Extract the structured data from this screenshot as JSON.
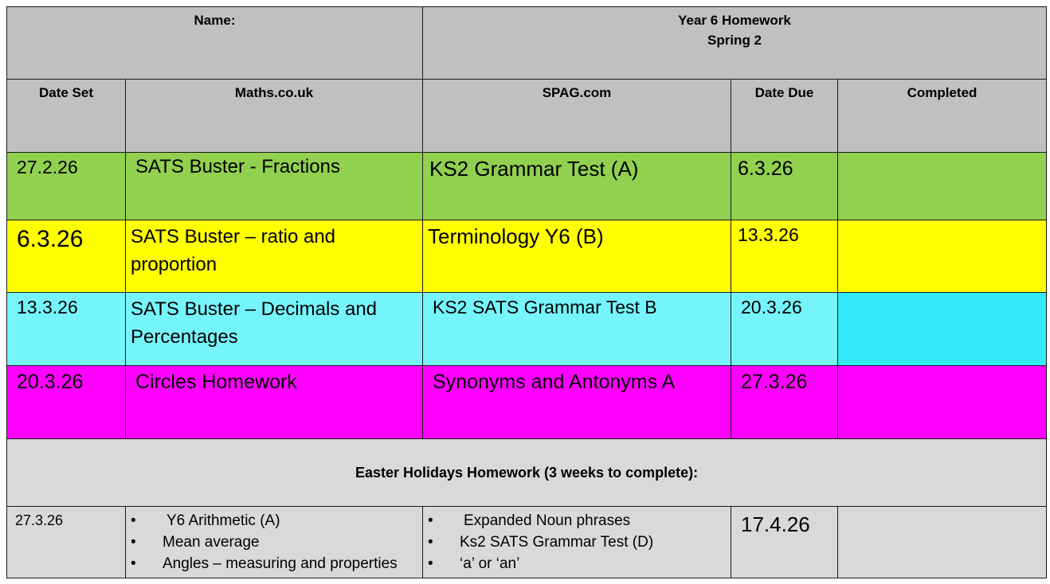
{
  "header": {
    "name_label": "Name:",
    "title_line1": "Year 6 Homework",
    "title_line2": "Spring 2"
  },
  "columns": [
    "Date Set",
    "Maths.co.uk",
    "SPAG.com",
    "Date Due",
    "Completed"
  ],
  "rows": [
    {
      "date_set": "27.2.26",
      "maths": "SATS Buster - Fractions",
      "spag": "KS2 Grammar Test (A)",
      "date_due": "6.3.26",
      "completed": "",
      "color": "#92d050"
    },
    {
      "date_set": "6.3.26",
      "maths": "SATS Buster – ratio and proportion",
      "spag": "Terminology Y6 (B)",
      "date_due": "13.3.26",
      "completed": "",
      "color": "#ffff00"
    },
    {
      "date_set": "13.3.26",
      "maths": "SATS Buster – Decimals and Percentages",
      "spag": "KS2 SATS Grammar Test B",
      "date_due": "20.3.26",
      "completed": "",
      "color": "#75f5fb"
    },
    {
      "date_set": "20.3.26",
      "maths": "Circles Homework",
      "spag": "Synonyms and Antonyms A",
      "date_due": "27.3.26",
      "completed": "",
      "color": "#ff00ff"
    }
  ],
  "easter": {
    "heading": "Easter Holidays Homework (3 weeks to complete):",
    "date_set": "27.3.26",
    "maths_items": [
      "Y6 Arithmetic (A)",
      "Mean average",
      "Angles – measuring and properties"
    ],
    "spag_items": [
      "Expanded Noun phrases",
      "Ks2 SATS Grammar Test (D)",
      "‘a’ or ‘an’"
    ],
    "date_due": "17.4.26",
    "bullet": "•"
  }
}
